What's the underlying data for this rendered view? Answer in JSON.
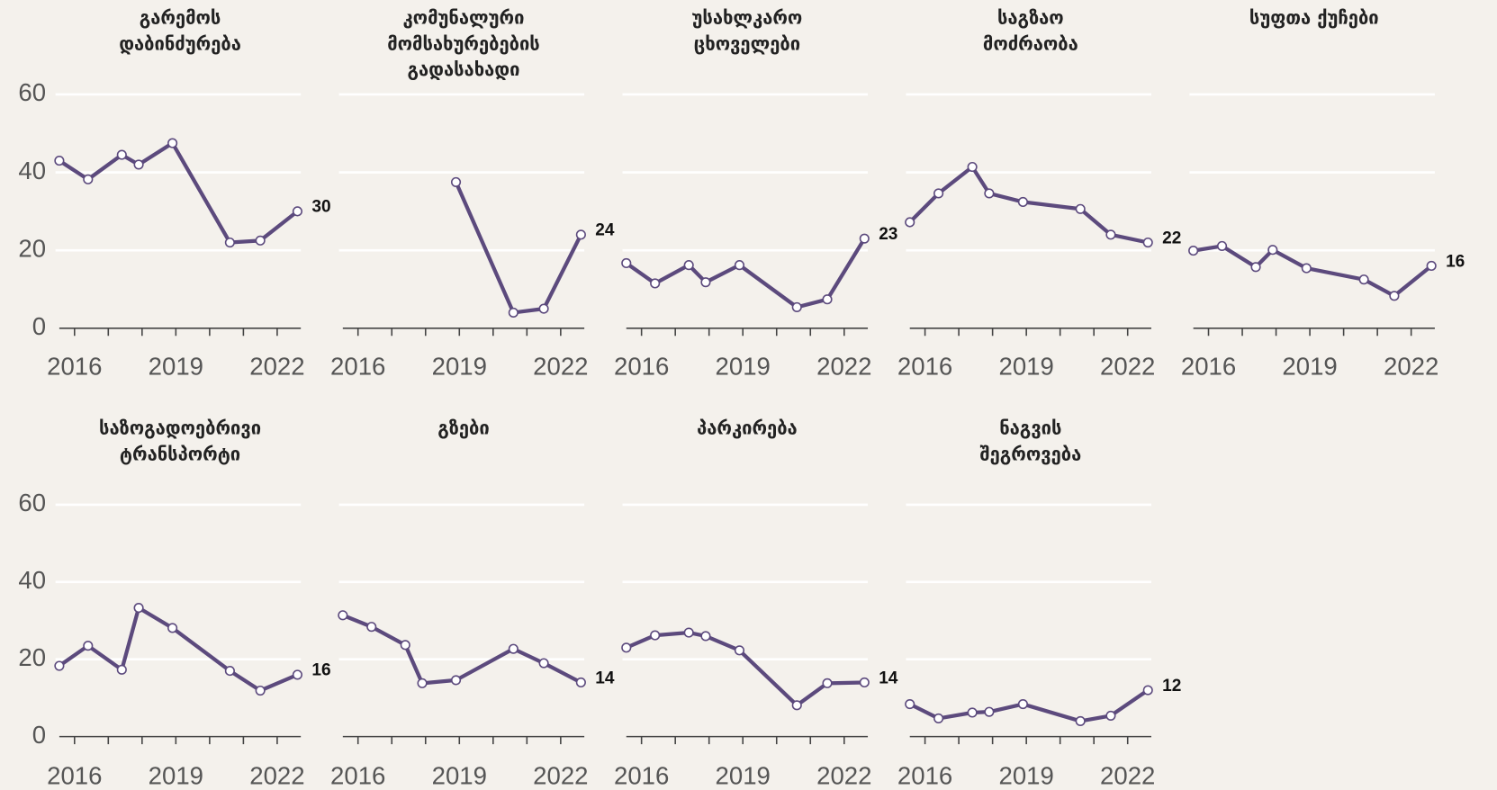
{
  "chart_data": {
    "type": "line",
    "color": "#5c4a7d",
    "grid": true,
    "x": [
      2015.55,
      2016.4,
      2017.4,
      2017.9,
      2018.9,
      2020.6,
      2021.5,
      2022.6
    ],
    "xlim": [
      2015.55,
      2022.7
    ],
    "xticks": [
      2016,
      2019,
      2022
    ],
    "minor_xticks": [
      2017,
      2018,
      2020,
      2021
    ],
    "ylim": [
      0,
      60
    ],
    "yticks": [
      0,
      20,
      40,
      60
    ],
    "panels": [
      {
        "title": [
          "გარემოს",
          "დაბინძურება"
        ],
        "values": [
          43,
          38.2,
          44.5,
          42,
          47.5,
          22,
          22.5,
          30
        ]
      },
      {
        "title": [
          "კომუნალური",
          "მომსახურებების",
          "გადასახადი"
        ],
        "values": [
          null,
          null,
          null,
          null,
          37.5,
          4,
          5,
          24
        ]
      },
      {
        "title": [
          "უსახლკარო",
          "ცხოველები"
        ],
        "values": [
          16.7,
          11.5,
          16.2,
          11.8,
          16.2,
          5.4,
          7.4,
          23
        ]
      },
      {
        "title": [
          "საგზაო",
          "მოძრაობა"
        ],
        "values": [
          27.2,
          34.6,
          41.4,
          34.6,
          32.4,
          30.6,
          24,
          22
        ]
      },
      {
        "title": [
          "სუფთა ქუჩები"
        ],
        "values": [
          19.9,
          21.1,
          15.7,
          20.1,
          15.4,
          12.5,
          8.3,
          16
        ]
      },
      {
        "title": [
          "საზოგადოებრივი",
          "ტრანსპორტი"
        ],
        "values": [
          18.3,
          23.5,
          17.3,
          33.3,
          28.1,
          17,
          11.9,
          16
        ]
      },
      {
        "title": [
          "გზები"
        ],
        "values": [
          31.4,
          28.4,
          23.7,
          13.8,
          14.6,
          22.7,
          19,
          14
        ]
      },
      {
        "title": [
          "პარკირება"
        ],
        "values": [
          23,
          26.2,
          26.9,
          26,
          22.3,
          8.1,
          13.8,
          14
        ]
      },
      {
        "title": [
          "ნაგვის",
          "შეგროვება"
        ],
        "values": [
          8.4,
          4.7,
          6.2,
          6.4,
          8.4,
          4,
          5.4,
          12
        ]
      }
    ]
  }
}
